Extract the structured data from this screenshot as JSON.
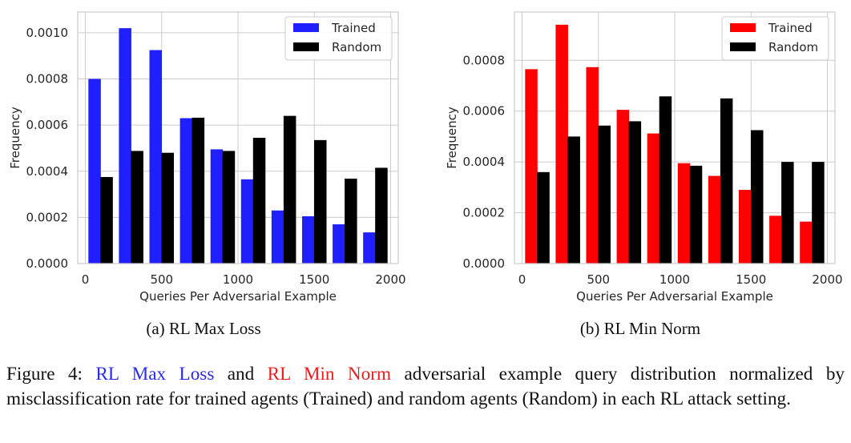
{
  "chart_data": [
    {
      "type": "bar",
      "id": "a",
      "subtitle": "(a) RL Max Loss",
      "xlabel": "Queries Per Adversarial Example",
      "ylabel": "Frequency",
      "xlim": [
        -50,
        2050
      ],
      "ylim": [
        0,
        0.00109
      ],
      "xticks": [
        0,
        500,
        1000,
        1500,
        2000
      ],
      "xtick_labels": [
        "0",
        "500",
        "1000",
        "1500",
        "2000"
      ],
      "yticks": [
        0,
        0.0002,
        0.0004,
        0.0006,
        0.0008,
        0.001
      ],
      "ytick_labels": [
        "0.0000",
        "0.0002",
        "0.0004",
        "0.0006",
        "0.0008",
        "0.0010"
      ],
      "grid": true,
      "legend_position": "top-right",
      "bin_centers": [
        100,
        300,
        500,
        700,
        900,
        1100,
        1300,
        1500,
        1700,
        1900
      ],
      "series": [
        {
          "name": "Trained",
          "color": "#1f1fff",
          "values": [
            0.0008,
            0.00102,
            0.000925,
            0.00063,
            0.000495,
            0.000365,
            0.00023,
            0.000205,
            0.00017,
            0.000135
          ]
        },
        {
          "name": "Random",
          "color": "#000000",
          "values": [
            0.000375,
            0.000488,
            0.00048,
            0.000632,
            0.000488,
            0.000545,
            0.00064,
            0.000535,
            0.000368,
            0.000415
          ]
        }
      ]
    },
    {
      "type": "bar",
      "id": "b",
      "subtitle": "(b) RL Min Norm",
      "xlabel": "Queries Per Adversarial Example",
      "ylabel": "Frequency",
      "xlim": [
        -50,
        2050
      ],
      "ylim": [
        0,
        0.00099
      ],
      "xticks": [
        0,
        500,
        1000,
        1500,
        2000
      ],
      "xtick_labels": [
        "0",
        "500",
        "1000",
        "1500",
        "2000"
      ],
      "yticks": [
        0,
        0.0002,
        0.0004,
        0.0006,
        0.0008
      ],
      "ytick_labels": [
        "0.0000",
        "0.0002",
        "0.0004",
        "0.0006",
        "0.0008"
      ],
      "grid": true,
      "legend_position": "top-right",
      "bin_centers": [
        100,
        300,
        500,
        700,
        900,
        1100,
        1300,
        1500,
        1700,
        1900
      ],
      "series": [
        {
          "name": "Trained",
          "color": "#ff0000",
          "values": [
            0.000765,
            0.00094,
            0.000773,
            0.000605,
            0.000512,
            0.000395,
            0.000345,
            0.00029,
            0.000188,
            0.000165
          ]
        },
        {
          "name": "Random",
          "color": "#000000",
          "values": [
            0.00036,
            0.0005,
            0.000543,
            0.00056,
            0.000658,
            0.000385,
            0.00065,
            0.000525,
            0.0004,
            0.0004
          ]
        }
      ]
    }
  ],
  "caption": {
    "label": "Figure 4: ",
    "term_a": "RL Max Loss",
    "connector": " and ",
    "term_b": "RL Min Norm",
    "rest": " adversarial example query distribution normalized by misclassification rate for trained agents (Trained) and random agents (Random) in each RL attack setting.",
    "term_a_color": "#2a2ae8",
    "term_b_color": "#e81e1e"
  }
}
